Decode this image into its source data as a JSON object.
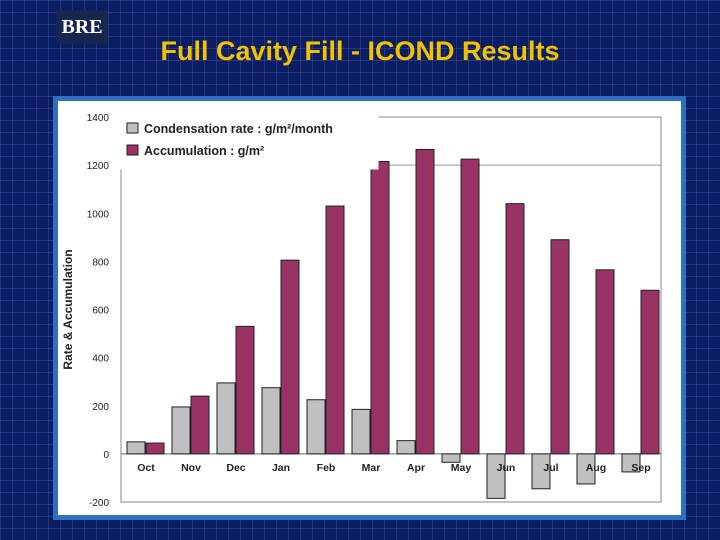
{
  "logo": {
    "text": "BRE"
  },
  "slide": {
    "title": "Full Cavity Fill - ICOND Results"
  },
  "chart_data": {
    "type": "bar",
    "categories": [
      "Oct",
      "Nov",
      "Dec",
      "Jan",
      "Feb",
      "Mar",
      "Apr",
      "May",
      "Jun",
      "Jul",
      "Aug",
      "Sep"
    ],
    "series": [
      {
        "name": "Condensation rate : g/m²/month",
        "values": [
          50,
          195,
          295,
          275,
          225,
          185,
          55,
          -35,
          -185,
          -145,
          -125,
          -75
        ],
        "color": "#c0c0c0"
      },
      {
        "name": "Accumulation : g/m²",
        "values": [
          45,
          240,
          530,
          805,
          1030,
          1215,
          1265,
          1225,
          1040,
          890,
          765,
          680
        ],
        "color": "#993366"
      }
    ],
    "ylabel": "Rate & Accumulation",
    "xlabel": "",
    "ylim": [
      -200,
      1400
    ],
    "yticks": [
      -200,
      0,
      200,
      400,
      600,
      800,
      1000,
      1200,
      1400
    ],
    "gridlines": [
      1200
    ],
    "legend": "top-left",
    "colors": {
      "plot_background": "#ffffff",
      "frame": "#2f6fc0",
      "title": "#f2c200",
      "background": "#0b1d63"
    }
  }
}
